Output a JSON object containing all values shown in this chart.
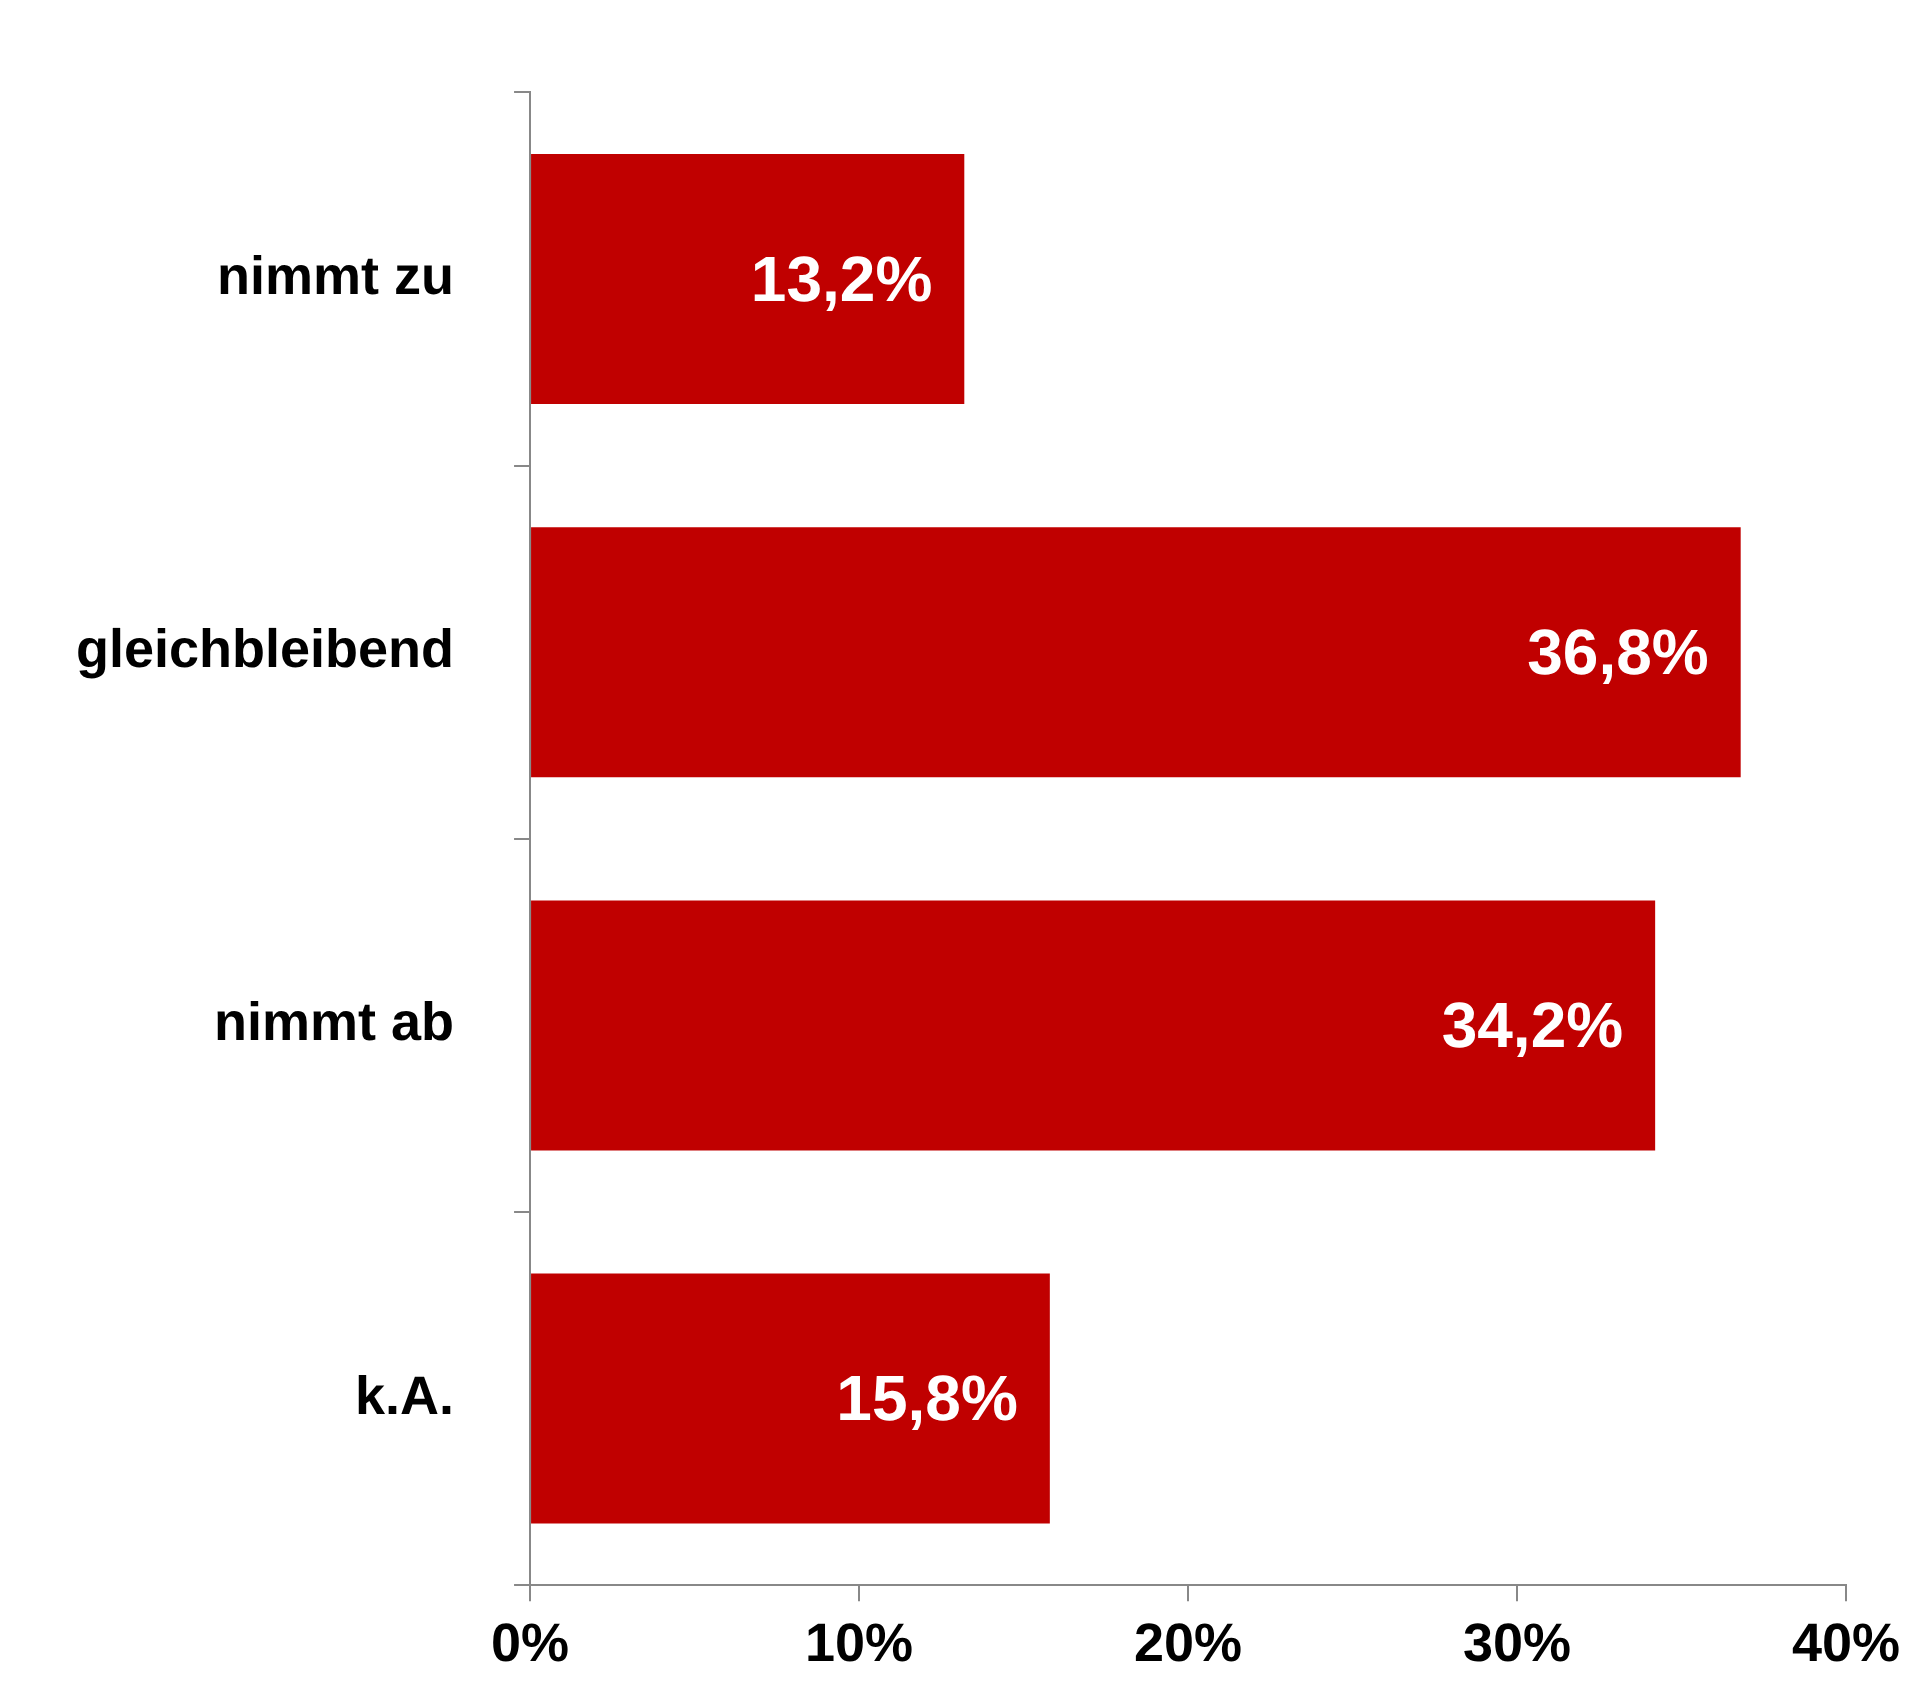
{
  "chart_data": {
    "type": "bar",
    "orientation": "horizontal",
    "categories": [
      "nimmt zu",
      "gleichbleibend",
      "nimmt ab",
      "k.A."
    ],
    "values": [
      13.2,
      36.8,
      34.2,
      15.8
    ],
    "value_labels": [
      "13,2%",
      "36,8%",
      "34,2%",
      "15,8%"
    ],
    "color": "#c00000",
    "xlim": [
      0,
      40
    ],
    "xticks": [
      {
        "value": 0,
        "label": "0%"
      },
      {
        "value": 10,
        "label": "10%"
      },
      {
        "value": 20,
        "label": "20%"
      },
      {
        "value": 30,
        "label": "30%"
      },
      {
        "value": 40,
        "label": "40%"
      }
    ],
    "legend": false
  }
}
